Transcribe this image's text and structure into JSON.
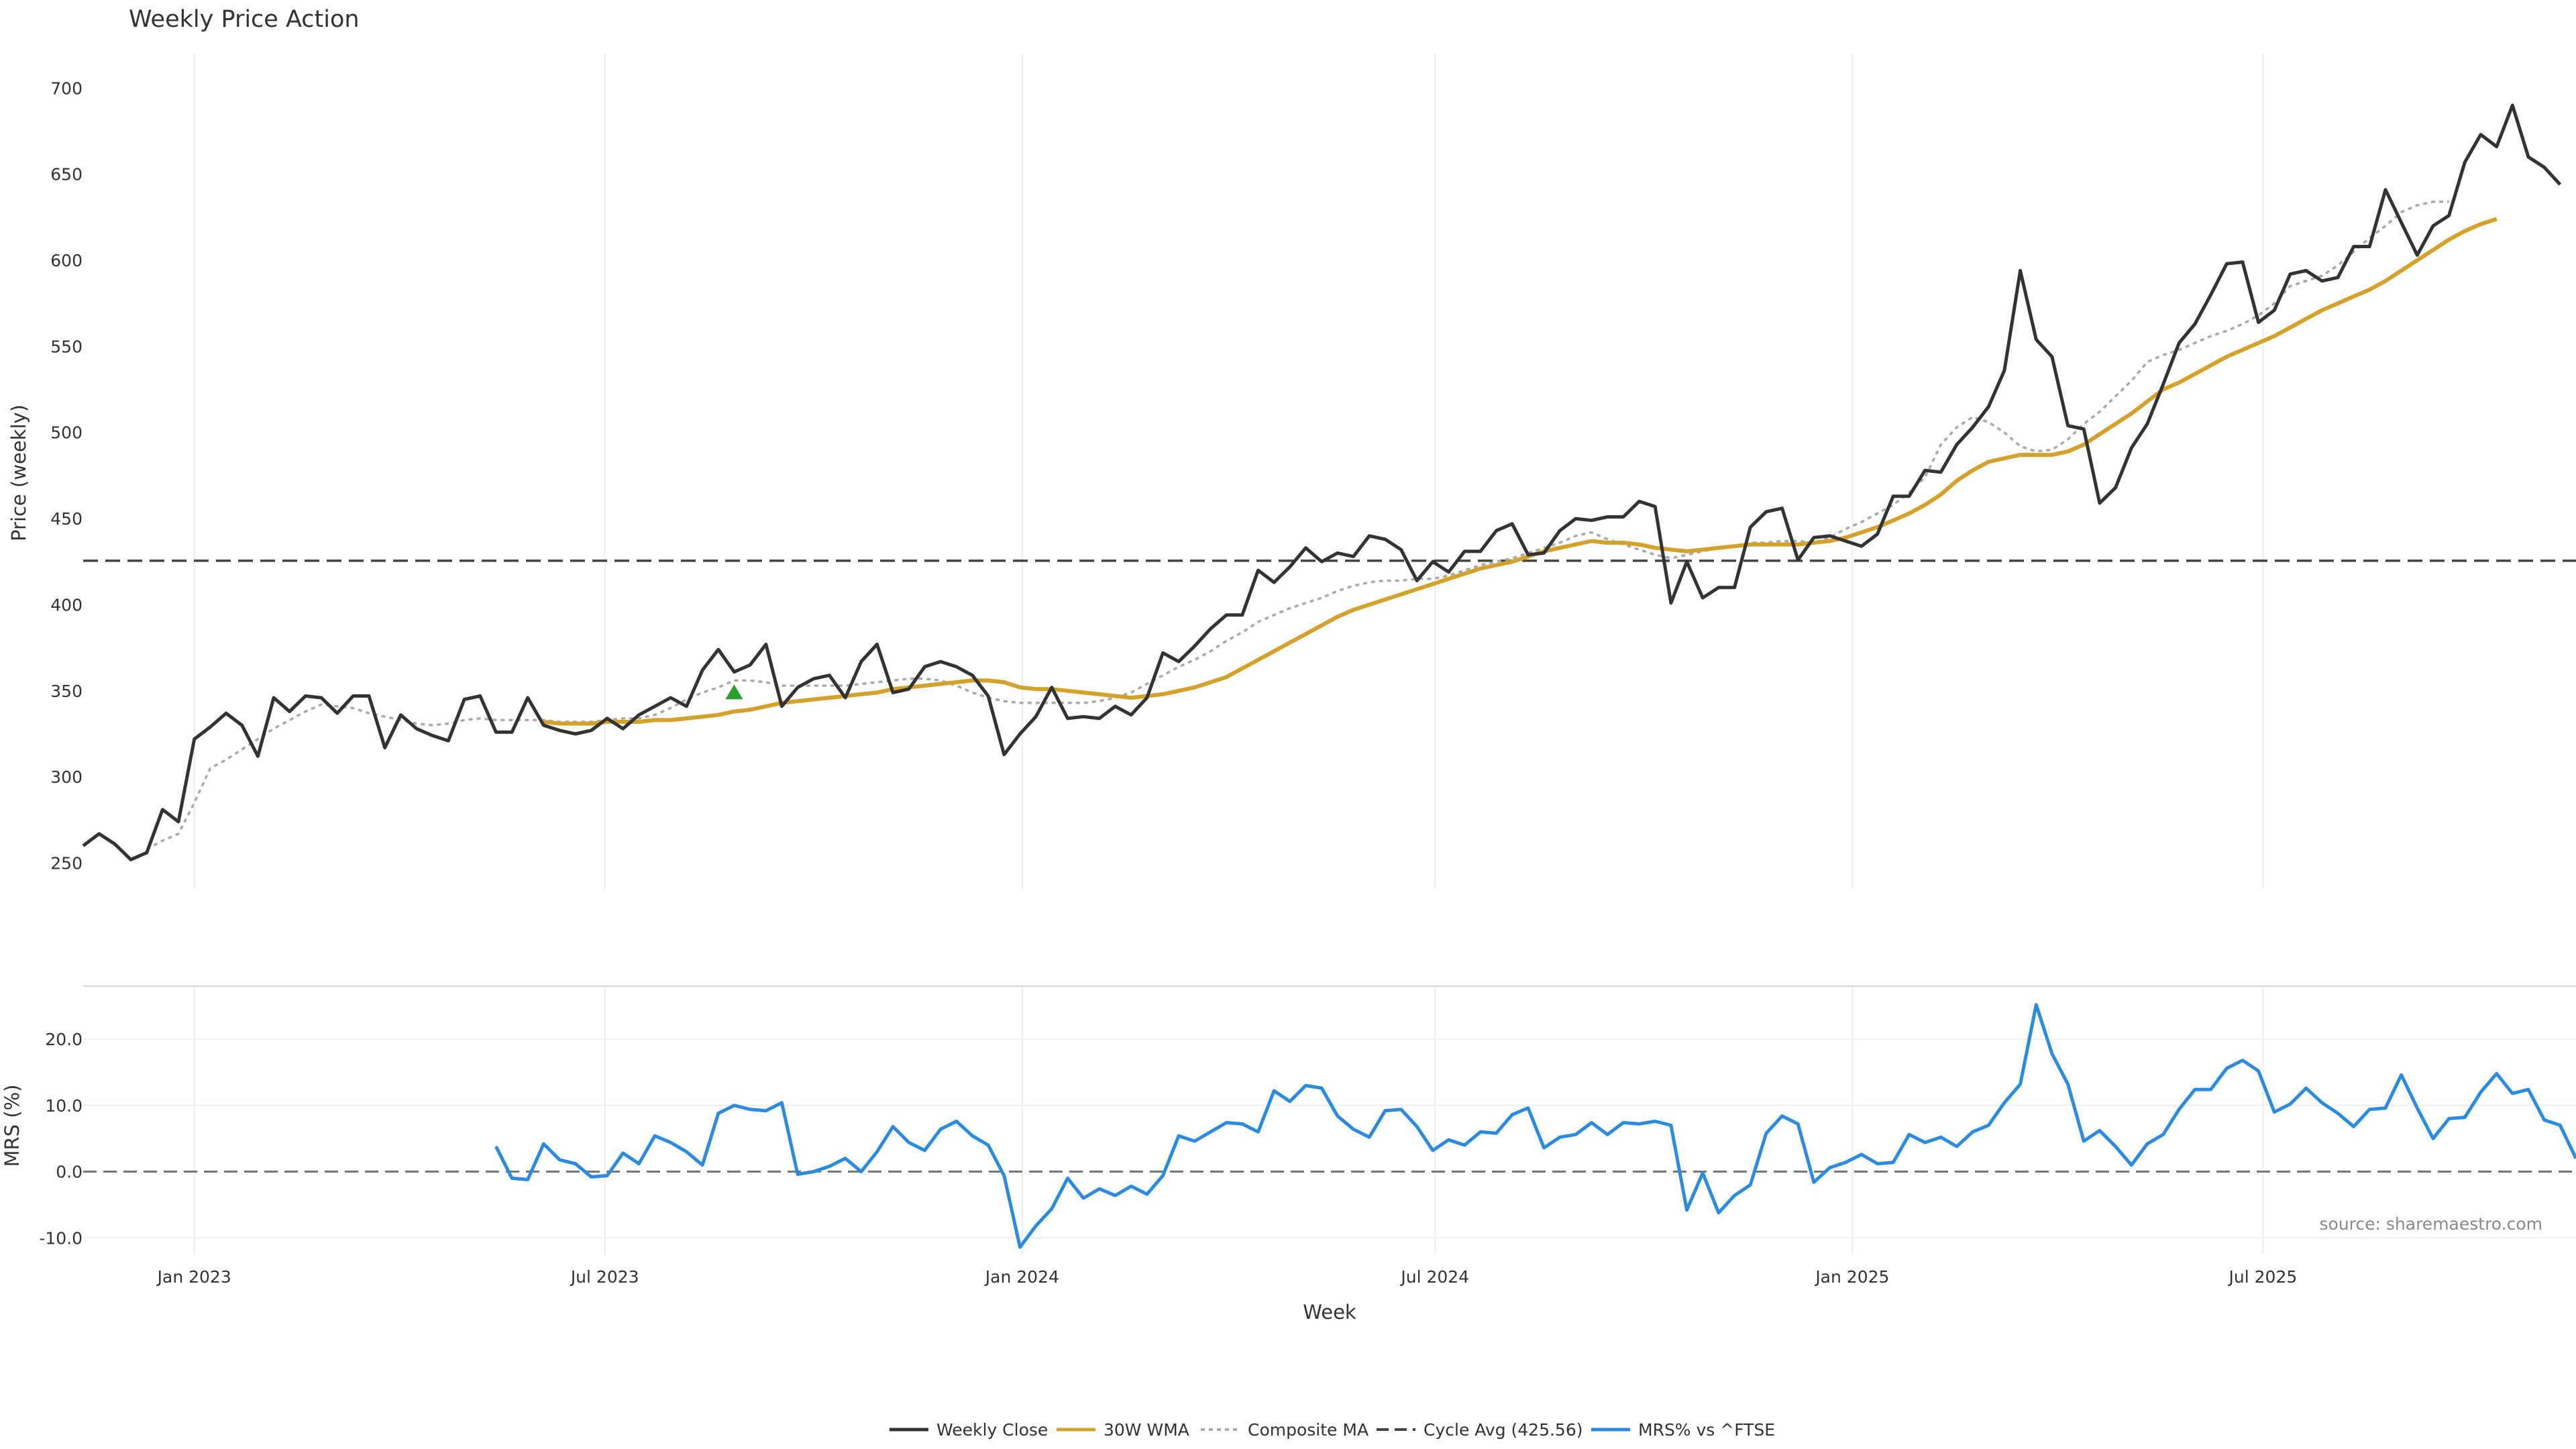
{
  "chart_data": [
    {
      "type": "line",
      "title": "Weekly Price Action",
      "xlabel": "",
      "ylabel": "Price (weekly)",
      "ylim": [
        235,
        720
      ],
      "yticks": [
        250,
        300,
        350,
        400,
        450,
        500,
        550,
        600,
        650,
        700
      ],
      "xlim": [
        "2022-11-13",
        "2025-11-16"
      ],
      "x_start": "2022-11-13",
      "x_step_days": 7,
      "grid": "vertical",
      "cycle_avg": {
        "label": "Cycle Avg (425.56)",
        "value": 425.56
      },
      "marker": {
        "date": "2023-08-27",
        "value": 349,
        "shape": "triangle-up",
        "color": "#2ca02c"
      },
      "series": [
        {
          "name": "Weekly Close",
          "color": "#333333",
          "values": [
            260,
            267,
            261,
            252,
            256,
            281,
            274,
            322,
            329,
            337,
            330,
            312,
            346,
            338,
            347,
            346,
            337,
            347,
            347,
            317,
            336,
            328,
            324,
            321,
            345,
            347,
            326,
            326,
            346,
            330,
            327,
            325,
            327,
            334,
            328,
            336,
            341,
            346,
            341,
            362,
            374,
            361,
            365,
            377,
            341,
            352,
            357,
            359,
            346,
            367,
            377,
            349,
            351,
            364,
            367,
            364,
            359,
            347,
            313,
            325,
            335,
            352,
            334,
            335,
            334,
            341,
            336,
            346,
            372,
            367,
            376,
            386,
            394,
            394,
            420,
            413,
            422,
            433,
            425,
            430,
            428,
            440,
            438,
            432,
            414,
            425,
            419,
            431,
            431,
            443,
            447,
            429,
            430,
            443,
            450,
            449,
            451,
            451,
            460,
            457,
            401,
            425,
            404,
            410,
            410,
            445,
            454,
            456,
            426,
            439,
            440,
            437,
            434,
            441,
            463,
            463,
            478,
            477,
            493,
            503,
            515,
            536,
            594,
            554,
            544,
            504,
            502,
            459,
            468,
            491,
            505,
            528,
            552,
            563,
            580,
            598,
            599,
            564,
            571,
            592,
            594,
            588,
            590,
            608,
            608,
            641,
            622,
            603,
            620,
            626,
            657,
            673,
            666,
            690,
            660,
            654,
            644
          ]
        },
        {
          "name": "30W WMA",
          "color": "#d4a12a",
          "offset": 29,
          "values": [
            332,
            331,
            331,
            331,
            332,
            332,
            332,
            333,
            333,
            334,
            335,
            336,
            338,
            339,
            341,
            343,
            344,
            345,
            346,
            347,
            348,
            349,
            351,
            352,
            353,
            354,
            355,
            356,
            356,
            355,
            352,
            351,
            351,
            350,
            349,
            348,
            347,
            346,
            347,
            348,
            350,
            352,
            355,
            358,
            363,
            368,
            373,
            378,
            383,
            388,
            393,
            397,
            400,
            403,
            406,
            409,
            412,
            415,
            418,
            421,
            423,
            425,
            428,
            431,
            433,
            435,
            437,
            436,
            436,
            435,
            433,
            432,
            431,
            432,
            433,
            434,
            435,
            435,
            435,
            435,
            436,
            437,
            439,
            442,
            445,
            449,
            453,
            458,
            464,
            472,
            478,
            483,
            485,
            487,
            487,
            487,
            489,
            493,
            499,
            505,
            511,
            518,
            525,
            529,
            534,
            539,
            544,
            548,
            552,
            556,
            561,
            566,
            571,
            575,
            579,
            583,
            588,
            594,
            600,
            606,
            612,
            617,
            621,
            624
          ]
        },
        {
          "name": "Composite MA",
          "color": "#aaaaaa",
          "offset": 4,
          "values": [
            258,
            263,
            267,
            285,
            305,
            310,
            316,
            322,
            328,
            333,
            338,
            342,
            341,
            340,
            337,
            335,
            333,
            331,
            330,
            331,
            333,
            334,
            333,
            333,
            333,
            333,
            332,
            332,
            332,
            333,
            334,
            334,
            336,
            340,
            345,
            349,
            352,
            356,
            356,
            355,
            353,
            353,
            353,
            353,
            353,
            354,
            355,
            356,
            357,
            357,
            356,
            353,
            349,
            346,
            344,
            343,
            343,
            343,
            343,
            343,
            344,
            346,
            349,
            354,
            359,
            364,
            368,
            373,
            379,
            384,
            390,
            394,
            398,
            401,
            404,
            408,
            411,
            413,
            414,
            414,
            415,
            415,
            417,
            420,
            423,
            425,
            427,
            430,
            433,
            436,
            440,
            442,
            438,
            435,
            432,
            429,
            427,
            429,
            431,
            433,
            434,
            436,
            436,
            437,
            437,
            436,
            439,
            444,
            448,
            453,
            458,
            465,
            474,
            493,
            503,
            509,
            506,
            500,
            492,
            489,
            490,
            496,
            505,
            512,
            521,
            530,
            541,
            545,
            548,
            552,
            556,
            559,
            563,
            568,
            575,
            585,
            588,
            591,
            597,
            605,
            613,
            620,
            628,
            632,
            634,
            634
          ]
        }
      ]
    },
    {
      "type": "line",
      "title": "",
      "xlabel": "Week",
      "ylabel": "MRS (%)",
      "ylim": [
        -12.5,
        28
      ],
      "yticks": [
        -10.0,
        0.0,
        10.0,
        20.0
      ],
      "xlim": [
        "2022-11-13",
        "2025-11-16"
      ],
      "x_start": "2022-11-13",
      "x_step_days": 7,
      "x_tick_labels": [
        {
          "date": "2023-01-01",
          "label": "Jan 2023"
        },
        {
          "date": "2023-07-01",
          "label": "Jul 2023"
        },
        {
          "date": "2024-01-01",
          "label": "Jan 2024"
        },
        {
          "date": "2024-07-01",
          "label": "Jul 2024"
        },
        {
          "date": "2025-01-01",
          "label": "Jan 2025"
        },
        {
          "date": "2025-07-01",
          "label": "Jul 2025"
        }
      ],
      "zero_line": 0,
      "series": [
        {
          "name": "MRS% vs ^FTSE",
          "color": "#2b8be0",
          "offset": 26,
          "values": [
            3.8,
            -1.0,
            -1.2,
            4.2,
            1.8,
            1.2,
            -0.8,
            -0.6,
            2.8,
            1.2,
            5.4,
            4.4,
            3.0,
            1.0,
            8.8,
            10.0,
            9.4,
            9.2,
            10.4,
            -0.4,
            0.0,
            0.8,
            2.0,
            0.0,
            3.0,
            6.8,
            4.4,
            3.2,
            6.4,
            7.6,
            5.4,
            4.0,
            -0.6,
            -11.4,
            -8.2,
            -5.6,
            -1.0,
            -4.0,
            -2.6,
            -3.6,
            -2.2,
            -3.4,
            -0.6,
            5.4,
            4.6,
            6.0,
            7.4,
            7.2,
            6.0,
            12.2,
            10.6,
            13.0,
            12.6,
            8.4,
            6.4,
            5.2,
            9.2,
            9.4,
            6.8,
            3.2,
            4.8,
            4.0,
            6.0,
            5.8,
            8.6,
            9.6,
            3.6,
            5.2,
            5.6,
            7.4,
            5.6,
            7.4,
            7.2,
            7.6,
            7.0,
            -5.8,
            -0.2,
            -6.2,
            -3.6,
            -2.0,
            5.8,
            8.4,
            7.2,
            -1.6,
            0.6,
            1.4,
            2.6,
            1.2,
            1.4,
            5.6,
            4.4,
            5.2,
            3.8,
            6.0,
            7.0,
            10.4,
            13.2,
            25.2,
            17.8,
            13.2,
            4.6,
            6.2,
            3.8,
            1.0,
            4.2,
            5.6,
            9.4,
            12.4,
            12.4,
            15.6,
            16.8,
            15.2,
            9.0,
            10.2,
            12.6,
            10.4,
            8.8,
            6.8,
            9.4,
            9.6,
            14.6,
            9.6,
            5.0,
            8.0,
            8.2,
            12.0,
            14.8,
            11.8,
            12.4,
            7.8,
            7.0,
            2.0
          ]
        }
      ]
    }
  ],
  "source_note": "source: sharemaestro.com"
}
